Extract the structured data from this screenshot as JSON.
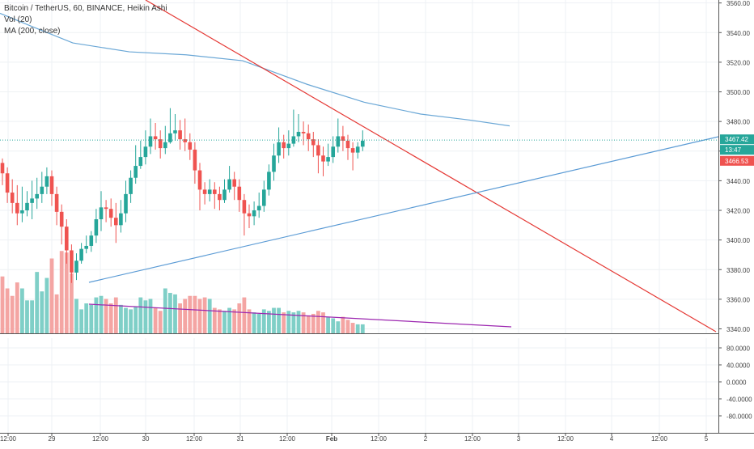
{
  "legend": {
    "symbol_line": "Bitcoin / TetherUS, 60, BINANCE, Heikin Ashi",
    "volume_line": "Vol (20)",
    "ma_line": "MA (200, close)"
  },
  "colors": {
    "up": "#26a69a",
    "down": "#ef5350",
    "vol_up": "#7fcfc7",
    "vol_down": "#f4a5a3",
    "ma": "#6aa7d6",
    "trend_red": "#e53935",
    "trend_blue": "#5b9bd5",
    "vol_trend": "#9c27b0",
    "price_line": "#26a69a"
  },
  "chart_data": {
    "type": "candlestick",
    "price_axis": {
      "min": 3340,
      "max": 3560,
      "step": 20,
      "ticks": [
        "3560.00",
        "3540.00",
        "3520.00",
        "3500.00",
        "3480.00",
        "3460.00",
        "3440.00",
        "3420.00",
        "3400.00",
        "3380.00",
        "3360.00",
        "3340.00"
      ]
    },
    "volume_axis": {
      "ticks": [
        "80.0000",
        "40.0000",
        "0.0000",
        "-40.0000",
        "-80.0000"
      ],
      "values": [
        80,
        40,
        0,
        -40,
        -80
      ]
    },
    "time_axis": {
      "labels": [
        "12:00",
        "29",
        "12:00",
        "30",
        "12:00",
        "31",
        "12:00",
        "Feb",
        "12:00",
        "2",
        "12:00",
        "3",
        "12:00",
        "4",
        "12:00",
        "5"
      ],
      "bold": [
        "Feb"
      ]
    },
    "current_price": {
      "label": "3467.42",
      "value": 3467.42,
      "countdown": "13:47"
    },
    "secondary_price": {
      "label": "3466.53",
      "value": 3466.53
    },
    "candles": [
      [
        3452,
        3445,
        3455,
        3437
      ],
      [
        3445,
        3432,
        3449,
        3425
      ],
      [
        3432,
        3425,
        3441,
        3418
      ],
      [
        3425,
        3418,
        3437,
        3410
      ],
      [
        3418,
        3420,
        3436,
        3412
      ],
      [
        3420,
        3425,
        3433,
        3416
      ],
      [
        3425,
        3428,
        3440,
        3414
      ],
      [
        3428,
        3431,
        3442,
        3421
      ],
      [
        3431,
        3436,
        3446,
        3425
      ],
      [
        3436,
        3443,
        3449,
        3431
      ],
      [
        3443,
        3431,
        3447,
        3423
      ],
      [
        3431,
        3419,
        3436,
        3410
      ],
      [
        3419,
        3409,
        3424,
        3397
      ],
      [
        3409,
        3393,
        3414,
        3384
      ],
      [
        3393,
        3378,
        3397,
        3371
      ],
      [
        3378,
        3386,
        3391,
        3373
      ],
      [
        3386,
        3394,
        3398,
        3384
      ],
      [
        3394,
        3396,
        3403,
        3391
      ],
      [
        3396,
        3403,
        3406,
        3392
      ],
      [
        3403,
        3414,
        3421,
        3398
      ],
      [
        3414,
        3422,
        3433,
        3406
      ],
      [
        3422,
        3421,
        3427,
        3412
      ],
      [
        3421,
        3415,
        3428,
        3409
      ],
      [
        3415,
        3410,
        3425,
        3398
      ],
      [
        3410,
        3418,
        3427,
        3405
      ],
      [
        3418,
        3431,
        3440,
        3412
      ],
      [
        3431,
        3442,
        3447,
        3425
      ],
      [
        3442,
        3450,
        3464,
        3438
      ],
      [
        3450,
        3456,
        3467,
        3448
      ],
      [
        3456,
        3463,
        3474,
        3451
      ],
      [
        3463,
        3470,
        3482,
        3458
      ],
      [
        3470,
        3468,
        3479,
        3461
      ],
      [
        3468,
        3462,
        3474,
        3455
      ],
      [
        3462,
        3466,
        3477,
        3458
      ],
      [
        3466,
        3472,
        3489,
        3465
      ],
      [
        3472,
        3474,
        3485,
        3467
      ],
      [
        3474,
        3468,
        3481,
        3461
      ],
      [
        3468,
        3466,
        3482,
        3460
      ],
      [
        3466,
        3461,
        3472,
        3454
      ],
      [
        3461,
        3447,
        3466,
        3438
      ],
      [
        3447,
        3434,
        3452,
        3420
      ],
      [
        3434,
        3431,
        3439,
        3424
      ],
      [
        3431,
        3434,
        3441,
        3426
      ],
      [
        3434,
        3431,
        3439,
        3421
      ],
      [
        3431,
        3427,
        3436,
        3420
      ],
      [
        3427,
        3434,
        3441,
        3425
      ],
      [
        3434,
        3441,
        3450,
        3432
      ],
      [
        3441,
        3436,
        3446,
        3427
      ],
      [
        3436,
        3427,
        3441,
        3419
      ],
      [
        3427,
        3418,
        3431,
        3403
      ],
      [
        3418,
        3416,
        3424,
        3408
      ],
      [
        3416,
        3420,
        3426,
        3410
      ],
      [
        3420,
        3423,
        3432,
        3415
      ],
      [
        3423,
        3434,
        3440,
        3419
      ],
      [
        3434,
        3446,
        3451,
        3430
      ],
      [
        3446,
        3457,
        3465,
        3440
      ],
      [
        3457,
        3466,
        3476,
        3452
      ],
      [
        3466,
        3462,
        3471,
        3455
      ],
      [
        3462,
        3465,
        3474,
        3457
      ],
      [
        3465,
        3470,
        3488,
        3463
      ],
      [
        3470,
        3473,
        3485,
        3466
      ],
      [
        3473,
        3472,
        3480,
        3464
      ],
      [
        3472,
        3468,
        3478,
        3460
      ],
      [
        3468,
        3464,
        3473,
        3456
      ],
      [
        3464,
        3457,
        3468,
        3445
      ],
      [
        3457,
        3453,
        3463,
        3443
      ],
      [
        3453,
        3456,
        3465,
        3450
      ],
      [
        3456,
        3463,
        3470,
        3452
      ],
      [
        3463,
        3470,
        3482,
        3459
      ],
      [
        3470,
        3467,
        3477,
        3460
      ],
      [
        3467,
        3462,
        3471,
        3454
      ],
      [
        3462,
        3459,
        3466,
        3447
      ],
      [
        3459,
        3463,
        3466,
        3455
      ],
      [
        3463,
        3467,
        3474,
        3460
      ]
    ],
    "volumes": [
      38,
      30,
      25,
      34,
      30,
      22,
      22,
      41,
      28,
      37,
      50,
      26,
      55,
      54,
      40,
      23,
      16,
      20,
      19,
      24,
      25,
      23,
      20,
      24,
      19,
      17,
      16,
      18,
      24,
      22,
      23,
      17,
      15,
      30,
      27,
      26,
      20,
      23,
      25,
      25,
      23,
      24,
      23,
      17,
      16,
      15,
      17,
      16,
      20,
      24,
      16,
      14,
      13,
      16,
      15,
      17,
      17,
      14,
      15,
      14,
      15,
      14,
      12,
      13,
      15,
      14,
      11,
      10,
      8,
      11,
      9,
      7,
      6,
      6
    ],
    "ma200": [
      [
        0,
        3553
      ],
      [
        40,
        3544
      ],
      [
        90,
        3533
      ],
      [
        160,
        3527
      ],
      [
        230,
        3525
      ],
      [
        300,
        3521
      ],
      [
        340,
        3513
      ],
      [
        380,
        3505
      ],
      [
        450,
        3493
      ],
      [
        520,
        3485
      ],
      [
        580,
        3481
      ],
      [
        630,
        3477
      ]
    ],
    "trendlines": {
      "red": {
        "from": [
          3340.0,
          3650
        ],
        "to": [
          3340,
          3339
        ]
      },
      "blue": {
        "from": [
          3373,
          3373
        ],
        "to": [
          3475,
          3475
        ]
      }
    }
  }
}
